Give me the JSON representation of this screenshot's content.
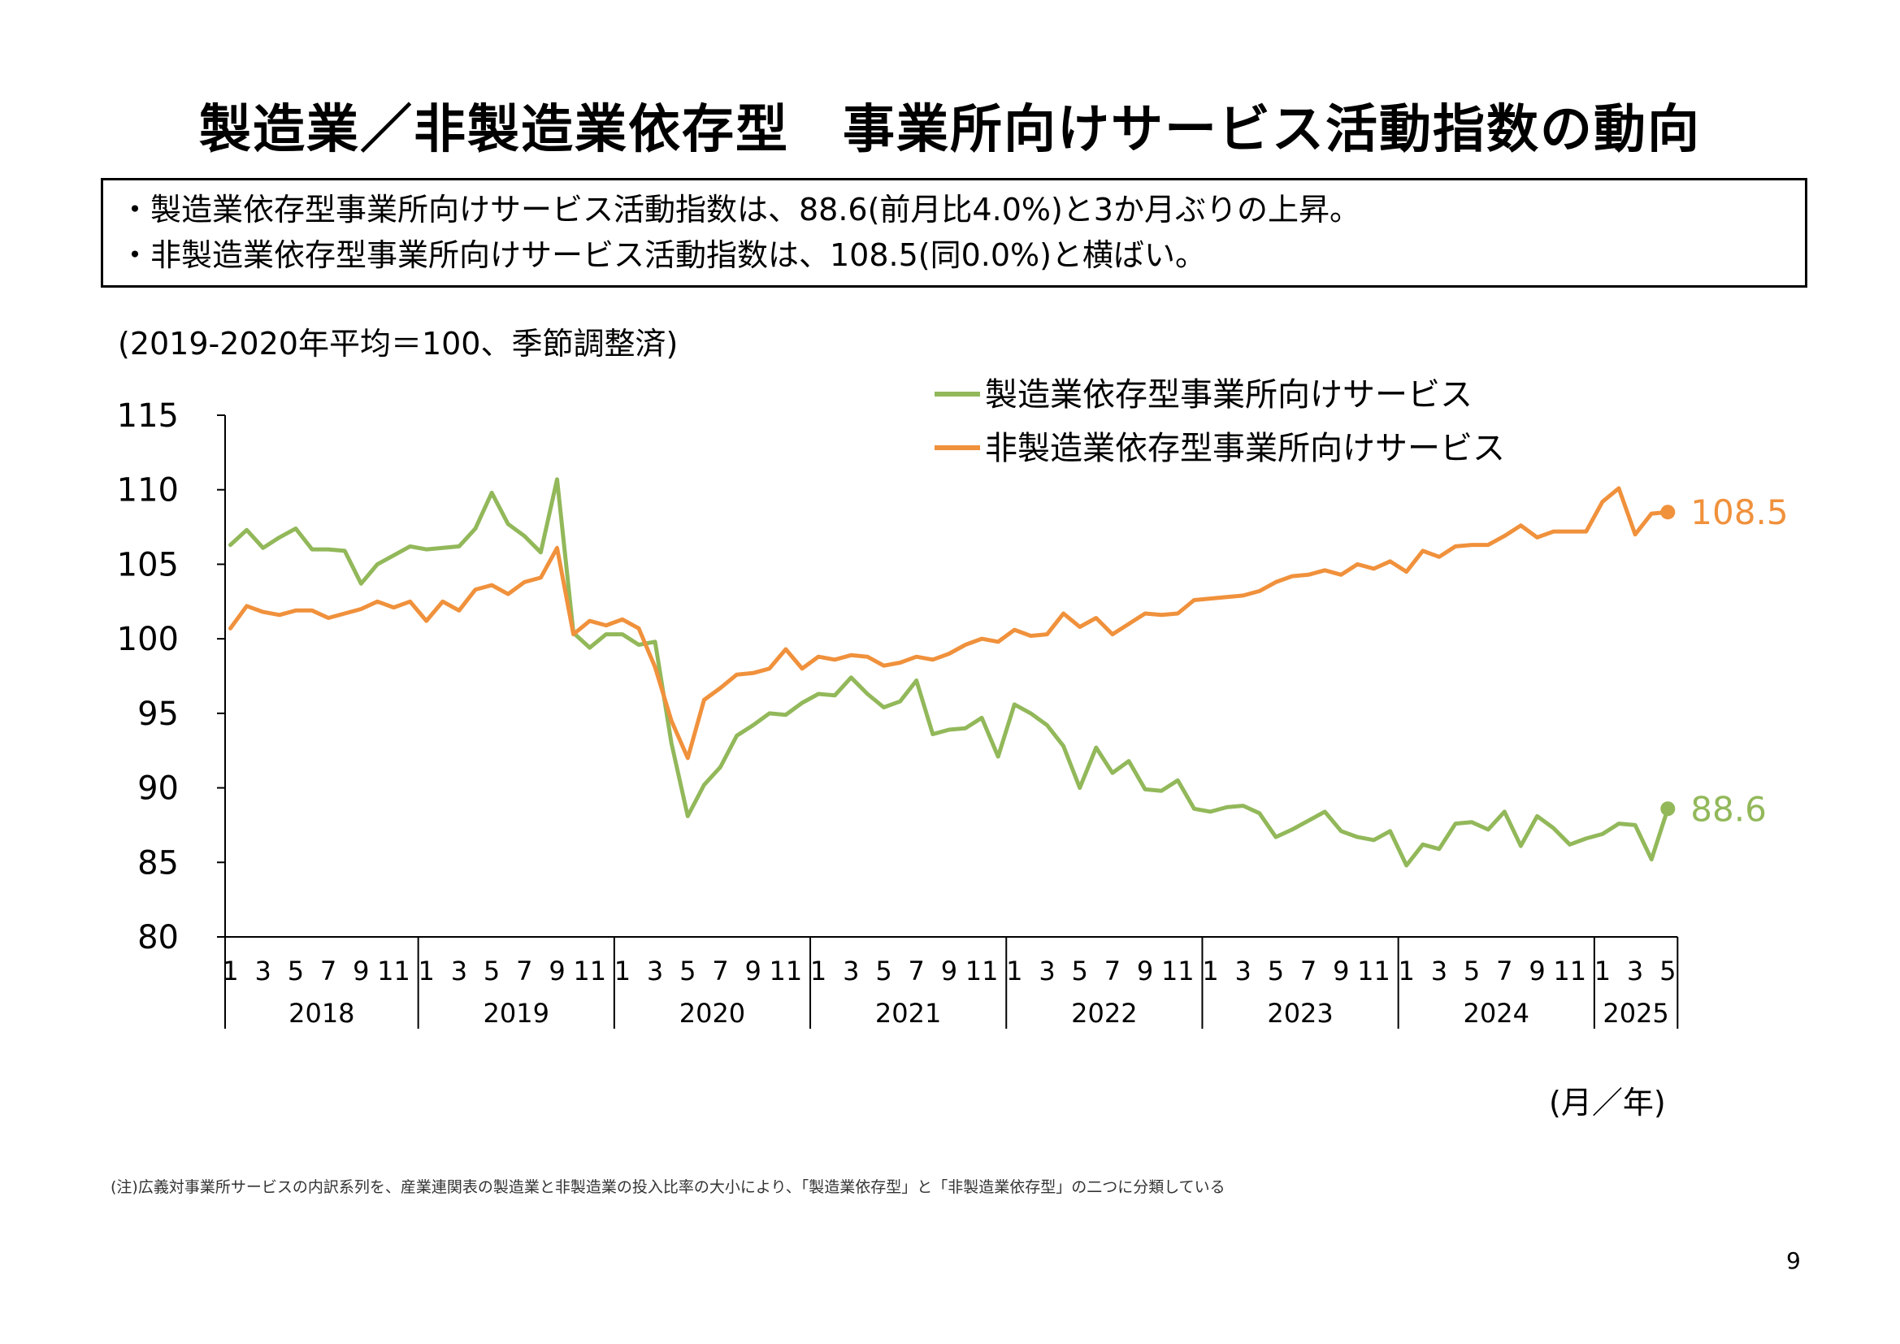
{
  "title": "製造業／非製造業依存型　事業所向けサービス活動指数の動向",
  "summary": [
    "・製造業依存型事業所向けサービス活動指数は、88.6(前月比4.0%)と3か月ぶりの上昇。",
    "・非製造業依存型事業所向けサービス活動指数は、108.5(同0.0%)と横ばい。"
  ],
  "unit_note": "(2019-2020年平均＝100、季節調整済)",
  "x_axis_unit": "(月／年)",
  "footnote": "(注)広義対事業所サービスの内訳系列を、産業連関表の製造業と非製造業の投入比率の大小により、「製造業依存型」と「非製造業依存型」の二つに分類している",
  "page_number": "9",
  "chart_data": {
    "type": "line",
    "ylim": [
      80,
      115
    ],
    "yticks": [
      "80",
      "85",
      "90",
      "95",
      "100",
      "105",
      "110",
      "115"
    ],
    "month_tick_labels": [
      "1",
      "3",
      "5",
      "7",
      "9",
      "11"
    ],
    "years": [
      "2018",
      "2019",
      "2020",
      "2021",
      "2022",
      "2023",
      "2024",
      "2025"
    ],
    "x_start": "2018-01",
    "grid": false,
    "legend_position": "top-right",
    "series": [
      {
        "name": "製造業依存型事業所向けサービス",
        "color": "#92b85a",
        "end_label": "88.6",
        "values": [
          106.3,
          107.3,
          106.1,
          106.8,
          107.4,
          106.0,
          106.0,
          105.9,
          103.7,
          105.0,
          105.6,
          106.2,
          106.0,
          106.1,
          106.2,
          107.4,
          109.8,
          107.7,
          106.9,
          105.8,
          110.7,
          100.4,
          99.4,
          100.3,
          100.3,
          99.6,
          99.8,
          93.0,
          88.1,
          90.2,
          91.4,
          93.5,
          94.2,
          95.0,
          94.9,
          95.7,
          96.3,
          96.2,
          97.4,
          96.3,
          95.4,
          95.8,
          97.2,
          93.6,
          93.9,
          94.0,
          94.7,
          92.1,
          95.6,
          95.0,
          94.2,
          92.8,
          90.0,
          92.7,
          91.0,
          91.8,
          89.9,
          89.8,
          90.5,
          88.6,
          88.4,
          88.7,
          88.8,
          88.3,
          86.7,
          87.2,
          87.8,
          88.4,
          87.1,
          86.7,
          86.5,
          87.1,
          84.8,
          86.2,
          85.9,
          87.6,
          87.7,
          87.2,
          88.4,
          86.1,
          88.1,
          87.3,
          86.2,
          86.6,
          86.9,
          87.6,
          87.5,
          85.2,
          88.6
        ]
      },
      {
        "name": "非製造業依存型事業所向けサービス",
        "color": "#f0913c",
        "end_label": "108.5",
        "values": [
          100.7,
          102.2,
          101.8,
          101.6,
          101.9,
          101.9,
          101.4,
          101.7,
          102.0,
          102.5,
          102.1,
          102.5,
          101.2,
          102.5,
          101.9,
          103.3,
          103.6,
          103.0,
          103.8,
          104.1,
          106.1,
          100.3,
          101.2,
          100.9,
          101.3,
          100.7,
          98.1,
          94.5,
          92.0,
          95.9,
          96.7,
          97.6,
          97.7,
          98.0,
          99.3,
          98.0,
          98.8,
          98.6,
          98.9,
          98.8,
          98.2,
          98.4,
          98.8,
          98.6,
          99.0,
          99.6,
          100.0,
          99.8,
          100.6,
          100.2,
          100.3,
          101.7,
          100.8,
          101.4,
          100.3,
          101.0,
          101.7,
          101.6,
          101.7,
          102.6,
          102.7,
          102.8,
          102.9,
          103.2,
          103.8,
          104.2,
          104.3,
          104.6,
          104.3,
          105.0,
          104.7,
          105.2,
          104.5,
          105.9,
          105.5,
          106.2,
          106.3,
          106.3,
          106.9,
          107.6,
          106.8,
          107.2,
          107.2,
          107.2,
          109.2,
          110.1,
          107.0,
          108.4,
          108.5
        ]
      }
    ]
  }
}
